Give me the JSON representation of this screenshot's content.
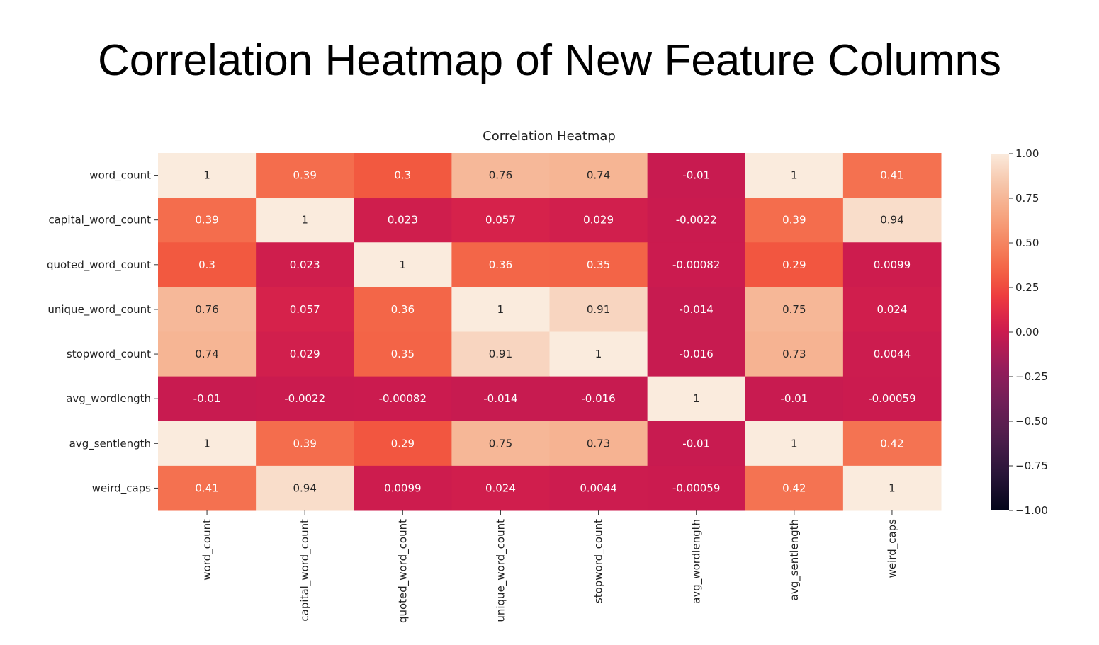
{
  "slide": {
    "title": "Correlation Heatmap of New Feature Columns"
  },
  "chart_data": {
    "type": "heatmap",
    "title": "Correlation Heatmap",
    "rows": [
      "word_count",
      "capital_word_count",
      "quoted_word_count",
      "unique_word_count",
      "stopword_count",
      "avg_wordlength",
      "avg_sentlength",
      "weird_caps"
    ],
    "columns": [
      "word_count",
      "capital_word_count",
      "quoted_word_count",
      "unique_word_count",
      "stopword_count",
      "avg_wordlength",
      "avg_sentlength",
      "weird_caps"
    ],
    "values": [
      [
        1,
        0.39,
        0.3,
        0.76,
        0.74,
        -0.01,
        1,
        0.41
      ],
      [
        0.39,
        1,
        0.023,
        0.057,
        0.029,
        -0.0022,
        0.39,
        0.94
      ],
      [
        0.3,
        0.023,
        1,
        0.36,
        0.35,
        -0.00082,
        0.29,
        0.0099
      ],
      [
        0.76,
        0.057,
        0.36,
        1,
        0.91,
        -0.014,
        0.75,
        0.024
      ],
      [
        0.74,
        0.029,
        0.35,
        0.91,
        1,
        -0.016,
        0.73,
        0.0044
      ],
      [
        -0.01,
        -0.0022,
        -0.00082,
        -0.014,
        -0.016,
        1,
        -0.01,
        -0.00059
      ],
      [
        1,
        0.39,
        0.29,
        0.75,
        0.73,
        -0.01,
        1,
        0.42
      ],
      [
        0.41,
        0.94,
        0.0099,
        0.024,
        0.0044,
        -0.00059,
        0.42,
        1
      ]
    ],
    "cell_labels": [
      [
        "1",
        "0.39",
        "0.3",
        "0.76",
        "0.74",
        "-0.01",
        "1",
        "0.41"
      ],
      [
        "0.39",
        "1",
        "0.023",
        "0.057",
        "0.029",
        "-0.0022",
        "0.39",
        "0.94"
      ],
      [
        "0.3",
        "0.023",
        "1",
        "0.36",
        "0.35",
        "-0.00082",
        "0.29",
        "0.0099"
      ],
      [
        "0.76",
        "0.057",
        "0.36",
        "1",
        "0.91",
        "-0.014",
        "0.75",
        "0.024"
      ],
      [
        "0.74",
        "0.029",
        "0.35",
        "0.91",
        "1",
        "-0.016",
        "0.73",
        "0.0044"
      ],
      [
        "-0.01",
        "-0.0022",
        "-0.00082",
        "-0.014",
        "-0.016",
        "1",
        "-0.01",
        "-0.00059"
      ],
      [
        "1",
        "0.39",
        "0.29",
        "0.75",
        "0.73",
        "-0.01",
        "1",
        "0.42"
      ],
      [
        "0.41",
        "0.94",
        "0.0099",
        "0.024",
        "0.0044",
        "-0.00059",
        "0.42",
        "1"
      ]
    ],
    "vmin": -1,
    "vmax": 1,
    "colormap": "rocket",
    "colorbar_ticks": [
      1.0,
      0.75,
      0.5,
      0.25,
      0.0,
      -0.25,
      -0.5,
      -0.75,
      -1.0
    ],
    "colorbar_tick_labels": [
      "1.00",
      "0.75",
      "0.50",
      "0.25",
      "0.00",
      "−0.25",
      "−0.50",
      "−0.75",
      "−1.00"
    ],
    "colorbar_placement": "right",
    "grid": false,
    "annotated": true
  }
}
